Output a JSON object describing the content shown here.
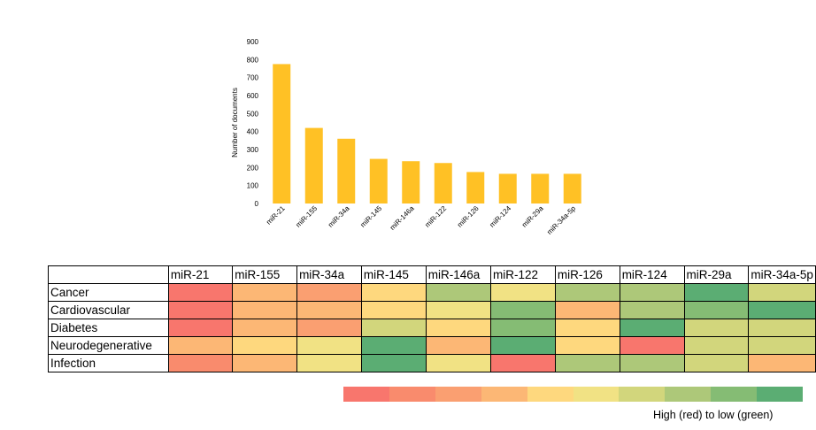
{
  "chart_data": [
    {
      "type": "bar",
      "categories": [
        "miR-21",
        "miR-155",
        "miR-34a",
        "miR-145",
        "miR-146a",
        "miR-122",
        "miR-126",
        "miR-124",
        "miR-29a",
        "miR-34a-5p"
      ],
      "values": [
        775,
        420,
        360,
        248,
        235,
        225,
        175,
        165,
        165,
        165
      ],
      "xlabel": "",
      "ylabel": "Number of documents",
      "ylim": [
        0,
        900
      ],
      "yticks": [
        0,
        100,
        200,
        300,
        400,
        500,
        600,
        700,
        800,
        900
      ],
      "grid": false,
      "bar_color": "#FFC125"
    },
    {
      "type": "heatmap",
      "columns": [
        "miR-21",
        "miR-155",
        "miR-34a",
        "miR-145",
        "miR-146a",
        "miR-122",
        "miR-126",
        "miR-124",
        "miR-29a",
        "miR-34a-5p"
      ],
      "rows": [
        "Cancer",
        "Cardiovascular",
        "Diabetes",
        "Neurodegenerative",
        "Infection"
      ],
      "values": [
        [
          1,
          4,
          3,
          5,
          8,
          6,
          8,
          8,
          10,
          7
        ],
        [
          1,
          4,
          4,
          5,
          6,
          9,
          4,
          8,
          9,
          10
        ],
        [
          1,
          4,
          3,
          7,
          5,
          9,
          5,
          10,
          7,
          7
        ],
        [
          4,
          5,
          6,
          10,
          4,
          10,
          5,
          1,
          7,
          7
        ],
        [
          2,
          4,
          6,
          10,
          6,
          1,
          8,
          8,
          7,
          4
        ]
      ],
      "scale": {
        "colors": [
          "#F8766D",
          "#F98B6D",
          "#FA9F71",
          "#FCB775",
          "#FED87E",
          "#F1E284",
          "#D2D67C",
          "#ADC879",
          "#85BC74",
          "#5BAD73"
        ],
        "caption": "High (red) to low (green)"
      }
    }
  ]
}
